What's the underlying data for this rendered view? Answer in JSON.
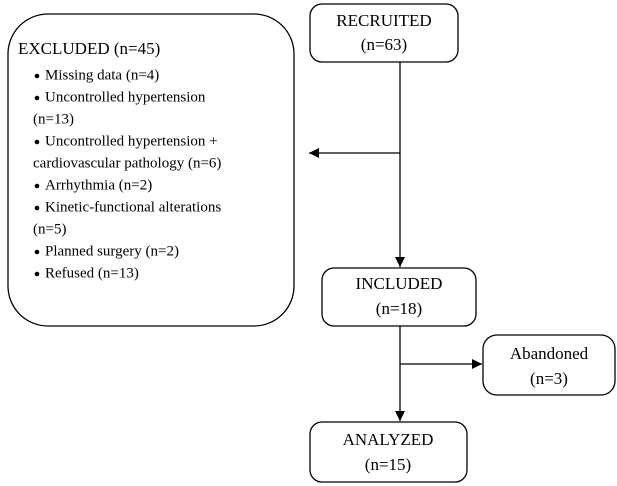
{
  "nodes": [
    {
      "label": "RECRUITED",
      "count": "(n=63)"
    },
    {
      "label": "INCLUDED",
      "count": "(n=18)"
    },
    {
      "label": "ANALYZED",
      "count": "(n=15)"
    },
    {
      "label": "Abandoned",
      "count": "(n=3)"
    }
  ],
  "excluded": {
    "title": "EXCLUDED (n=45)",
    "items": [
      [
        "Missing data (n=4)"
      ],
      [
        "Uncontrolled hypertension",
        "(n=13)"
      ],
      [
        "Uncontrolled hypertension +",
        "cardiovascular pathology (n=6)"
      ],
      [
        "Arrhythmia (n=2)"
      ],
      [
        "Kinetic-functional alterations",
        "(n=5)"
      ],
      [
        "Planned surgery (n=2)"
      ],
      [
        "Refused (n=13)"
      ]
    ]
  }
}
